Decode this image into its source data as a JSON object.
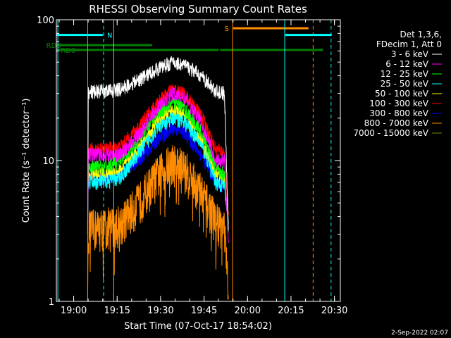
{
  "chart_data": {
    "type": "line",
    "title": "RHESSI Observing Summary Count Rates",
    "xlabel": "Start Time (07-Oct-17 18:54:02)",
    "ylabel": "Count Rate (s⁻¹ detector⁻¹)",
    "yscale": "log",
    "ylim": [
      1,
      100
    ],
    "x_unit": "minutes since 18:54:02",
    "xlim": [
      0,
      98
    ],
    "x_ticks": [
      {
        "label": "19:00",
        "t": 5.97
      },
      {
        "label": "19:15",
        "t": 20.97
      },
      {
        "label": "19:30",
        "t": 35.97
      },
      {
        "label": "19:45",
        "t": 50.97
      },
      {
        "label": "20:00",
        "t": 65.97
      },
      {
        "label": "20:15",
        "t": 80.97
      },
      {
        "label": "20:30",
        "t": 95.97
      }
    ],
    "y_ticks": [
      {
        "label": "1",
        "v": 1
      },
      {
        "label": "10",
        "v": 10
      },
      {
        "label": "100",
        "v": 100
      }
    ],
    "legend_header": [
      "Det 1,3,6,",
      "FDecim 1, Att 0"
    ],
    "series": [
      {
        "name": "3 - 6 keV",
        "color": "#ffffff",
        "amp": 1.0,
        "t": [
          10.8,
          11,
          16,
          22,
          28,
          35,
          40,
          44,
          50,
          55,
          58,
          59.4
        ],
        "v": [
          3,
          31,
          31,
          32,
          37,
          45,
          50,
          48,
          40,
          31,
          30,
          3
        ]
      },
      {
        "name": "6 - 12 keV",
        "color": "#ff00ff",
        "amp": 1.0,
        "t": [
          10.8,
          11,
          16,
          22,
          28,
          35,
          40,
          44,
          50,
          55,
          58,
          59.4
        ],
        "v": [
          2.5,
          11,
          11,
          11,
          15,
          24,
          30,
          28,
          19,
          10,
          10,
          2.5
        ]
      },
      {
        "name": "12 - 25 keV",
        "color": "#00ff00",
        "amp": 1.0,
        "t": [
          10.8,
          11,
          16,
          22,
          28,
          35,
          40,
          44,
          50,
          55,
          58,
          59.4
        ],
        "v": [
          3,
          9,
          9,
          10,
          14,
          22,
          26,
          24,
          16,
          9,
          8,
          3
        ]
      },
      {
        "name": "25 - 50 keV",
        "color": "#00ffff",
        "amp": 1.0,
        "t": [
          10.8,
          11,
          16,
          22,
          28,
          35,
          40,
          44,
          50,
          55,
          58,
          59.4
        ],
        "v": [
          3.5,
          7,
          7,
          7.5,
          11,
          17,
          20,
          19,
          13,
          7,
          6.5,
          3.5
        ]
      },
      {
        "name": "50 - 100 keV",
        "color": "#ffff00",
        "amp": 1.0,
        "t": [
          10.8,
          11,
          16,
          22,
          28,
          35,
          40,
          44,
          50,
          55,
          58,
          59.4
        ],
        "v": [
          3.5,
          8,
          8,
          8.5,
          12,
          19,
          23,
          21,
          14,
          8,
          7.5,
          3.5
        ]
      },
      {
        "name": "100 - 300 keV",
        "color": "#ff0000",
        "amp": 1.0,
        "t": [
          10.8,
          11,
          16,
          22,
          28,
          35,
          40,
          44,
          50,
          55,
          58,
          59.4
        ],
        "v": [
          4,
          12,
          12,
          12.5,
          17,
          26,
          32,
          30,
          21,
          12,
          11.5,
          4
        ]
      },
      {
        "name": "300 - 800 keV",
        "color": "#0000ff",
        "amp": 1.0,
        "t": [
          10.8,
          11,
          16,
          22,
          28,
          35,
          40,
          44,
          50,
          55,
          58,
          59.4
        ],
        "v": [
          3.5,
          7.5,
          7.5,
          8,
          10,
          14,
          17,
          16,
          11,
          7,
          6.5,
          3.5
        ]
      },
      {
        "name": "800 - 7000 keV",
        "color": "#ff8c00",
        "amp": 1.0,
        "t": [
          10.8,
          11,
          16,
          22,
          28,
          35,
          40,
          44,
          50,
          55,
          58,
          59.4
        ],
        "v": [
          1,
          3.3,
          3.4,
          3.6,
          5,
          8,
          10,
          9,
          6,
          3.8,
          3.4,
          1
        ]
      },
      {
        "name": "7000 - 15000 keV",
        "color": "#808000",
        "amp": 1.0,
        "t": [],
        "v": []
      }
    ],
    "flags": [
      {
        "label": "RD0",
        "color": "#008000",
        "level": 66,
        "label_t": -3.5,
        "segments": [
          [
            0,
            33
          ]
        ]
      },
      {
        "label": "RD6",
        "color": "#008000",
        "level": 61,
        "label_t": 1.5,
        "segments": [
          [
            0,
            15
          ],
          [
            15,
            35
          ],
          [
            35,
            56
          ],
          [
            56.5,
            87.5
          ],
          [
            87.5,
            92
          ]
        ]
      },
      {
        "label": "N",
        "color": "#00ffff",
        "level": 78,
        "label_t": 17.5,
        "segments": [
          [
            0,
            16
          ],
          [
            79,
            95
          ]
        ]
      },
      {
        "label": "S",
        "color": "#ff8c00",
        "level": 87,
        "label_t": 58,
        "segments": [
          [
            61,
            87
          ]
        ]
      }
    ],
    "vlines": [
      {
        "t": 0.5,
        "color": "#00ffff",
        "style": "solid"
      },
      {
        "t": 16.3,
        "color": "#00ffff",
        "style": "dashed"
      },
      {
        "t": 19.8,
        "color": "#00ffff",
        "style": "solid"
      },
      {
        "t": 78.8,
        "color": "#00ffff",
        "style": "solid"
      },
      {
        "t": 94.8,
        "color": "#00ffff",
        "style": "dashed"
      },
      {
        "t": 10.8,
        "color": "#ff8c00",
        "style": "solid"
      },
      {
        "t": 60.8,
        "color": "#ff8c00",
        "style": "solid"
      },
      {
        "t": 88.6,
        "color": "#ff8c00",
        "style": "dashed"
      }
    ]
  },
  "footer": {
    "date": "2-Sep-2022 02:07"
  }
}
